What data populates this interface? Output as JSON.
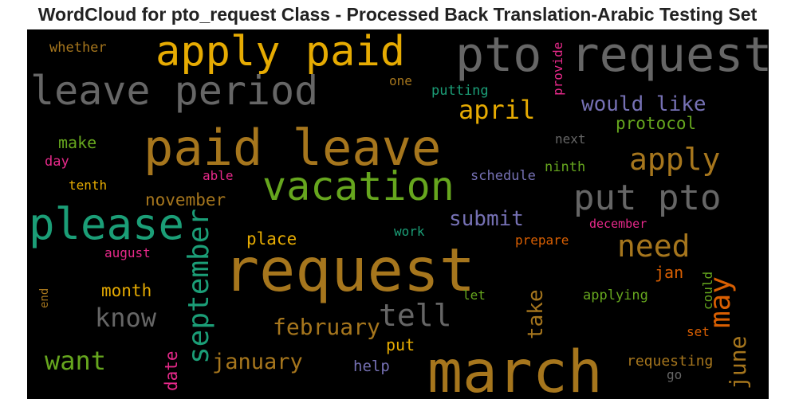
{
  "chart_data": {
    "type": "wordcloud",
    "title": "WordCloud for pto_request Class - Processed Back Translation-Arabic Testing Set",
    "background": "#000000",
    "palette": [
      "#a6761d",
      "#e6ab02",
      "#666666",
      "#1b9e77",
      "#66a61e",
      "#7570b3",
      "#e7298a",
      "#d95f02"
    ],
    "words": [
      {
        "text": "request",
        "color": "#a6761d"
      },
      {
        "text": "march",
        "color": "#a6761d"
      },
      {
        "text": "paid leave",
        "color": "#a6761d"
      },
      {
        "text": "pto request",
        "color": "#666666"
      },
      {
        "text": "apply paid",
        "color": "#e6ab02"
      },
      {
        "text": "leave period",
        "color": "#666666"
      },
      {
        "text": "vacation",
        "color": "#66a61e"
      },
      {
        "text": "please",
        "color": "#1b9e77"
      },
      {
        "text": "put pto",
        "color": "#666666"
      },
      {
        "text": "apply",
        "color": "#a6761d"
      },
      {
        "text": "need",
        "color": "#a6761d"
      },
      {
        "text": "september",
        "color": "#1b9e77"
      },
      {
        "text": "may",
        "color": "#d95f02"
      },
      {
        "text": "tell",
        "color": "#666666"
      },
      {
        "text": "april",
        "color": "#e6ab02"
      },
      {
        "text": "would like",
        "color": "#7570b3"
      },
      {
        "text": "february",
        "color": "#a6761d"
      },
      {
        "text": "june",
        "color": "#a6761d"
      },
      {
        "text": "take",
        "color": "#a6761d"
      },
      {
        "text": "know",
        "color": "#666666"
      },
      {
        "text": "want",
        "color": "#66a61e"
      },
      {
        "text": "january",
        "color": "#a6761d"
      },
      {
        "text": "submit",
        "color": "#7570b3"
      },
      {
        "text": "protocol",
        "color": "#66a61e"
      },
      {
        "text": "november",
        "color": "#a6761d"
      },
      {
        "text": "month",
        "color": "#e6ab02"
      },
      {
        "text": "place",
        "color": "#e6ab02"
      },
      {
        "text": "date",
        "color": "#e7298a"
      },
      {
        "text": "make",
        "color": "#66a61e"
      },
      {
        "text": "put",
        "color": "#e6ab02"
      },
      {
        "text": "jan",
        "color": "#d95f02"
      },
      {
        "text": "help",
        "color": "#7570b3"
      },
      {
        "text": "requesting",
        "color": "#a6761d"
      },
      {
        "text": "whether",
        "color": "#a6761d"
      },
      {
        "text": "putting",
        "color": "#1b9e77"
      },
      {
        "text": "provide",
        "color": "#e7298a"
      },
      {
        "text": "one",
        "color": "#a6761d"
      },
      {
        "text": "day",
        "color": "#e7298a"
      },
      {
        "text": "next",
        "color": "#666666"
      },
      {
        "text": "schedule",
        "color": "#7570b3"
      },
      {
        "text": "ninth",
        "color": "#66a61e"
      },
      {
        "text": "able",
        "color": "#e7298a"
      },
      {
        "text": "tenth",
        "color": "#e6ab02"
      },
      {
        "text": "december",
        "color": "#e7298a"
      },
      {
        "text": "work",
        "color": "#1b9e77"
      },
      {
        "text": "prepare",
        "color": "#d95f02"
      },
      {
        "text": "august",
        "color": "#e7298a"
      },
      {
        "text": "could",
        "color": "#66a61e"
      },
      {
        "text": "let",
        "color": "#66a61e"
      },
      {
        "text": "applying",
        "color": "#66a61e"
      },
      {
        "text": "set",
        "color": "#d95f02"
      },
      {
        "text": "end",
        "color": "#a6761d"
      },
      {
        "text": "go",
        "color": "#666666"
      }
    ]
  }
}
